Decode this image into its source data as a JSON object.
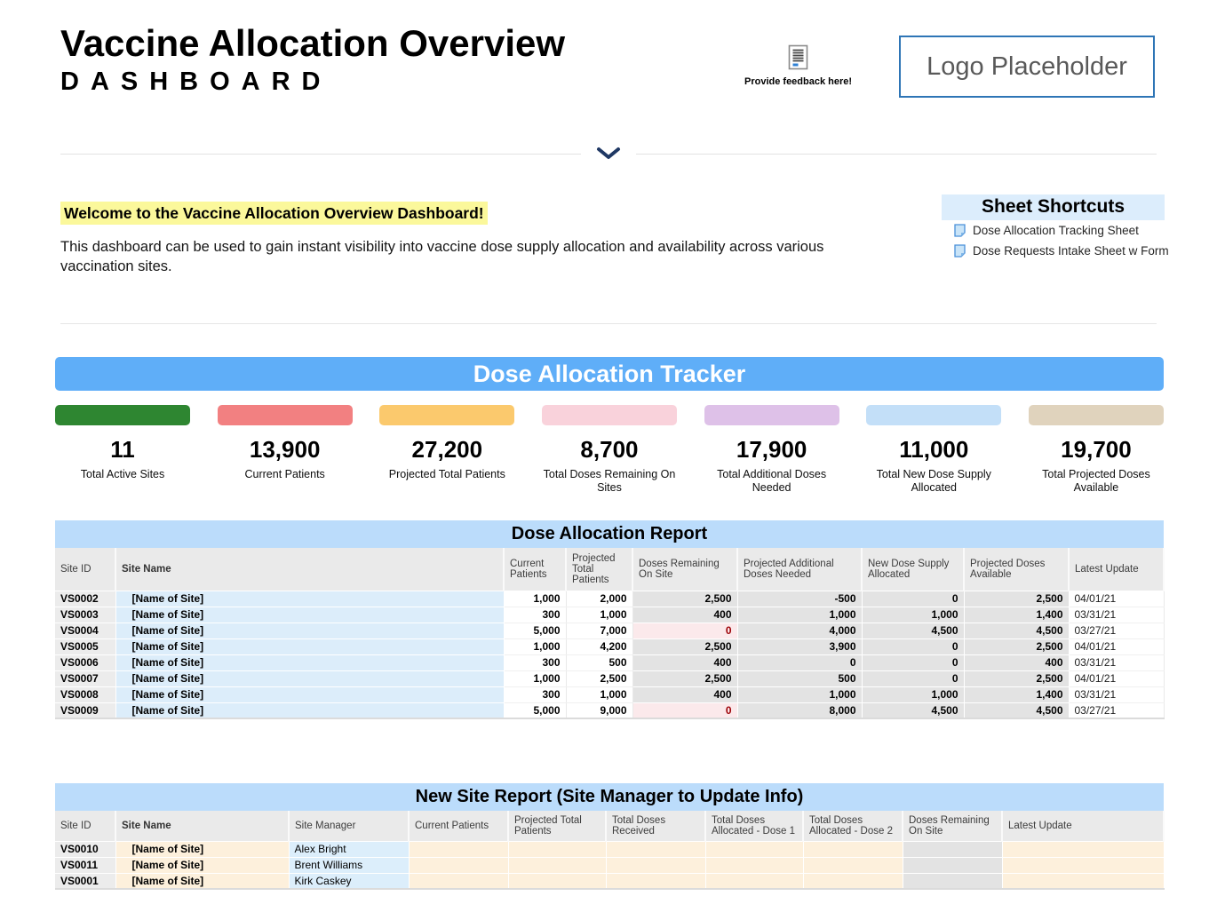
{
  "header": {
    "title": "Vaccine Allocation Overview",
    "subtitle": "DASHBOARD",
    "feedback_label": "Provide feedback here!",
    "feedback_icon": "feedback-form-icon",
    "logo_text": "Logo Placeholder"
  },
  "welcome": {
    "headline": "Welcome to the Vaccine Allocation Overview Dashboard!",
    "body": "This dashboard can be used to gain instant visibility into vaccine dose supply allocation and availability across various vaccination sites."
  },
  "sheet_shortcuts": {
    "title": "Sheet Shortcuts",
    "links": [
      {
        "label": "Dose Allocation Tracking Sheet",
        "icon": "sheet-icon"
      },
      {
        "label": "Dose Requests Intake Sheet w Form",
        "icon": "sheet-icon"
      }
    ]
  },
  "tracker": {
    "title": "Dose Allocation Tracker",
    "kpis": [
      {
        "value": "11",
        "label": "Total Active Sites",
        "color": "#2E8631"
      },
      {
        "value": "13,900",
        "label": "Current Patients",
        "color": "#F28081"
      },
      {
        "value": "27,200",
        "label": "Projected Total Patients",
        "color": "#FBC96D"
      },
      {
        "value": "8,700",
        "label": "Total Doses Remaining On Sites",
        "color": "#F9D2DB"
      },
      {
        "value": "17,900",
        "label": "Total Additional Doses Needed",
        "color": "#DEC1E8"
      },
      {
        "value": "11,000",
        "label": "Total New Dose Supply Allocated",
        "color": "#C3DFF8"
      },
      {
        "value": "19,700",
        "label": "Total Projected Doses Available",
        "color": "#E0D3BD"
      }
    ]
  },
  "allocation_report": {
    "title": "Dose Allocation Report",
    "columns": [
      "Site ID",
      "Site Name",
      "Current Patients",
      "Projected Total Patients",
      "Doses Remaining On Site",
      "Projected Additional Doses Needed",
      "New Dose Supply Allocated",
      "Projected Doses Available",
      "Latest Update"
    ],
    "rows": [
      {
        "site_id": "VS0002",
        "site_name": "[Name of Site]",
        "current_patients": "1,000",
        "projected_total_patients": "2,000",
        "doses_remaining_on_site": "2,500",
        "doses_alert": false,
        "projected_additional_doses_needed": "-500",
        "new_dose_supply_allocated": "0",
        "projected_doses_available": "2,500",
        "latest_update": "04/01/21"
      },
      {
        "site_id": "VS0003",
        "site_name": "[Name of Site]",
        "current_patients": "300",
        "projected_total_patients": "1,000",
        "doses_remaining_on_site": "400",
        "doses_alert": false,
        "projected_additional_doses_needed": "1,000",
        "new_dose_supply_allocated": "1,000",
        "projected_doses_available": "1,400",
        "latest_update": "03/31/21"
      },
      {
        "site_id": "VS0004",
        "site_name": "[Name of Site]",
        "current_patients": "5,000",
        "projected_total_patients": "7,000",
        "doses_remaining_on_site": "0",
        "doses_alert": true,
        "projected_additional_doses_needed": "4,000",
        "new_dose_supply_allocated": "4,500",
        "projected_doses_available": "4,500",
        "latest_update": "03/27/21"
      },
      {
        "site_id": "VS0005",
        "site_name": "[Name of Site]",
        "current_patients": "1,000",
        "projected_total_patients": "4,200",
        "doses_remaining_on_site": "2,500",
        "doses_alert": false,
        "projected_additional_doses_needed": "3,900",
        "new_dose_supply_allocated": "0",
        "projected_doses_available": "2,500",
        "latest_update": "04/01/21"
      },
      {
        "site_id": "VS0006",
        "site_name": "[Name of Site]",
        "current_patients": "300",
        "projected_total_patients": "500",
        "doses_remaining_on_site": "400",
        "doses_alert": false,
        "projected_additional_doses_needed": "0",
        "new_dose_supply_allocated": "0",
        "projected_doses_available": "400",
        "latest_update": "03/31/21"
      },
      {
        "site_id": "VS0007",
        "site_name": "[Name of Site]",
        "current_patients": "1,000",
        "projected_total_patients": "2,500",
        "doses_remaining_on_site": "2,500",
        "doses_alert": false,
        "projected_additional_doses_needed": "500",
        "new_dose_supply_allocated": "0",
        "projected_doses_available": "2,500",
        "latest_update": "04/01/21"
      },
      {
        "site_id": "VS0008",
        "site_name": "[Name of Site]",
        "current_patients": "300",
        "projected_total_patients": "1,000",
        "doses_remaining_on_site": "400",
        "doses_alert": false,
        "projected_additional_doses_needed": "1,000",
        "new_dose_supply_allocated": "1,000",
        "projected_doses_available": "1,400",
        "latest_update": "03/31/21"
      },
      {
        "site_id": "VS0009",
        "site_name": "[Name of Site]",
        "current_patients": "5,000",
        "projected_total_patients": "9,000",
        "doses_remaining_on_site": "0",
        "doses_alert": true,
        "projected_additional_doses_needed": "8,000",
        "new_dose_supply_allocated": "4,500",
        "projected_doses_available": "4,500",
        "latest_update": "03/27/21"
      }
    ]
  },
  "new_site_report": {
    "title": "New Site Report (Site Manager to Update Info)",
    "columns": [
      "Site ID",
      "Site Name",
      "Site Manager",
      "Current Patients",
      "Projected Total Patients",
      "Total Doses Received",
      "Total Doses Allocated - Dose 1",
      "Total Doses Allocated - Dose 2",
      "Doses Remaining On Site",
      "Latest Update"
    ],
    "rows": [
      {
        "site_id": "VS0010",
        "site_name": "[Name of Site]",
        "site_manager": "Alex Bright",
        "current_patients": "",
        "projected_total_patients": "",
        "total_doses_received": "",
        "total_doses_allocated_dose_1": "",
        "total_doses_allocated_dose_2": "",
        "doses_remaining_on_site": "",
        "latest_update": ""
      },
      {
        "site_id": "VS0011",
        "site_name": "[Name of Site]",
        "site_manager": "Brent Williams",
        "current_patients": "",
        "projected_total_patients": "",
        "total_doses_received": "",
        "total_doses_allocated_dose_1": "",
        "total_doses_allocated_dose_2": "",
        "doses_remaining_on_site": "",
        "latest_update": ""
      },
      {
        "site_id": "VS0001",
        "site_name": "[Name of Site]",
        "site_manager": "Kirk Caskey",
        "current_patients": "",
        "projected_total_patients": "",
        "total_doses_received": "",
        "total_doses_allocated_dose_1": "",
        "total_doses_allocated_dose_2": "",
        "doses_remaining_on_site": "",
        "latest_update": ""
      }
    ]
  },
  "colors": {
    "banner_blue": "#5FAEF8",
    "section_header_blue": "#BBDCFB",
    "shortcuts_header_blue": "#DCEDFC",
    "highlight_yellow": "#FBF89B",
    "chevron_navy": "#1F3864",
    "logo_border_blue": "#2E75B6",
    "alert_bg": "#FBE9EB",
    "alert_text": "#9C0006"
  }
}
